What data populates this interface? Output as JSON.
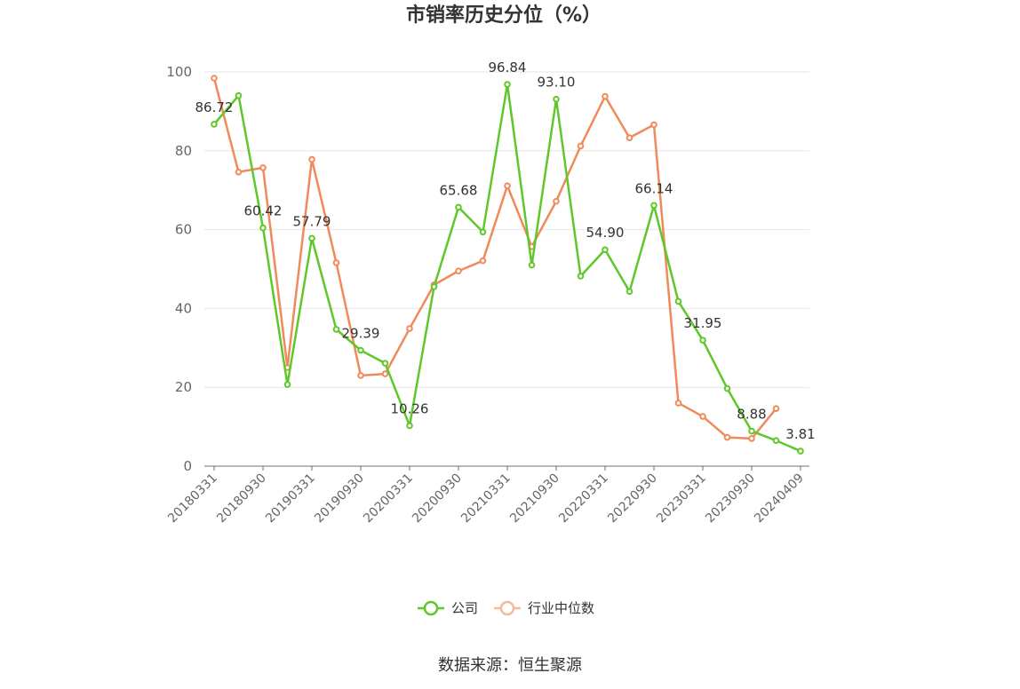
{
  "chart_data": {
    "type": "line",
    "title": "市销率历史分位（%）",
    "ylim": [
      0,
      100
    ],
    "yticks": [
      0,
      20,
      40,
      60,
      80,
      100
    ],
    "grid": true,
    "legend_position": "bottom",
    "x": [
      "20180331",
      "20180630",
      "20180930",
      "20181231",
      "20190331",
      "20190630",
      "20190930",
      "20191231",
      "20200331",
      "20200630",
      "20200930",
      "20201231",
      "20210331",
      "20210630",
      "20210930",
      "20211231",
      "20220331",
      "20220630",
      "20220930",
      "20221231",
      "20230331",
      "20230630",
      "20230930",
      "20231231",
      "20240409"
    ],
    "xtick_labels": [
      "20180331",
      "20180930",
      "20190331",
      "20190930",
      "20200331",
      "20200930",
      "20210331",
      "20210930",
      "20220331",
      "20220930",
      "20230331",
      "20230930",
      "20240409"
    ],
    "series": [
      {
        "name": "公司",
        "color": "#5ec82a",
        "values": [
          86.72,
          94.0,
          60.42,
          20.7,
          57.79,
          34.7,
          29.39,
          26.1,
          10.26,
          45.5,
          65.68,
          59.4,
          96.84,
          51.0,
          93.1,
          48.2,
          54.9,
          44.3,
          66.14,
          41.8,
          31.95,
          19.7,
          8.88,
          6.5,
          3.81
        ],
        "labels": {
          "0": "86.72",
          "2": "60.42",
          "4": "57.79",
          "6": "29.39",
          "8": "10.26",
          "10": "65.68",
          "12": "96.84",
          "14": "93.10",
          "16": "54.90",
          "18": "66.14",
          "20": "31.95",
          "22": "8.88",
          "24": "3.81"
        }
      },
      {
        "name": "行业中位数",
        "color": "#f08a5b",
        "values": [
          98.4,
          74.6,
          75.7,
          25.0,
          77.8,
          51.6,
          23.0,
          23.4,
          34.9,
          46.0,
          49.5,
          52.1,
          71.1,
          55.7,
          67.2,
          81.2,
          93.8,
          83.3,
          86.6,
          16.0,
          12.6,
          7.3,
          7.0,
          14.6,
          null
        ]
      }
    ]
  },
  "source_text": "数据来源：恒生聚源"
}
